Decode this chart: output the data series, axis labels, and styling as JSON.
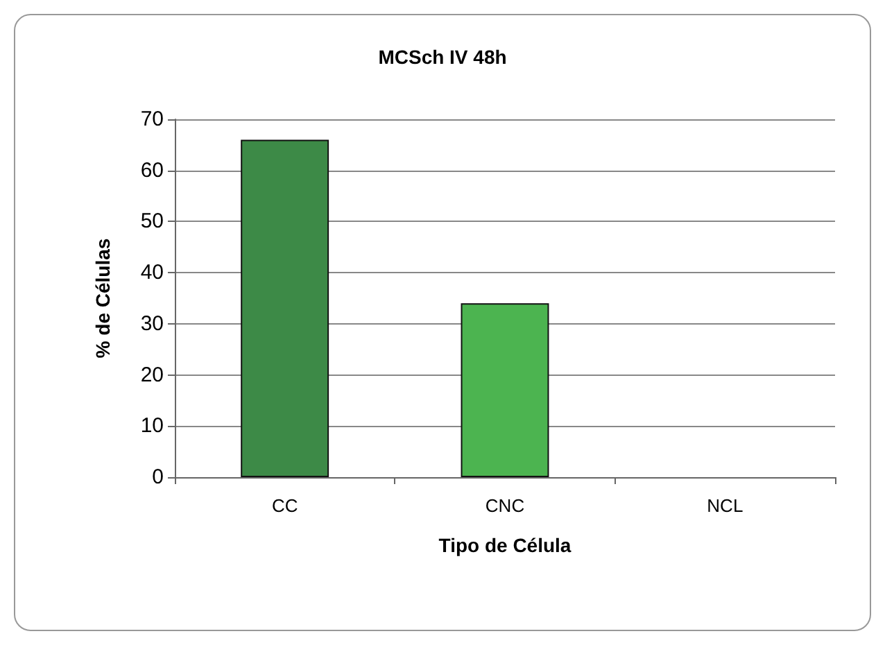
{
  "chart_data": {
    "type": "bar",
    "title": "MCSch IV 48h",
    "xlabel": "Tipo de Célula",
    "ylabel": "% de Células",
    "categories": [
      "CC",
      "CNC",
      "NCL"
    ],
    "values": [
      66,
      34,
      0
    ],
    "colors": [
      "#3d8a47",
      "#4cb450",
      "#4cb450"
    ],
    "ylim": [
      0,
      70
    ],
    "yticks": [
      0,
      10,
      20,
      30,
      40,
      50,
      60,
      70
    ],
    "grid": "y"
  }
}
